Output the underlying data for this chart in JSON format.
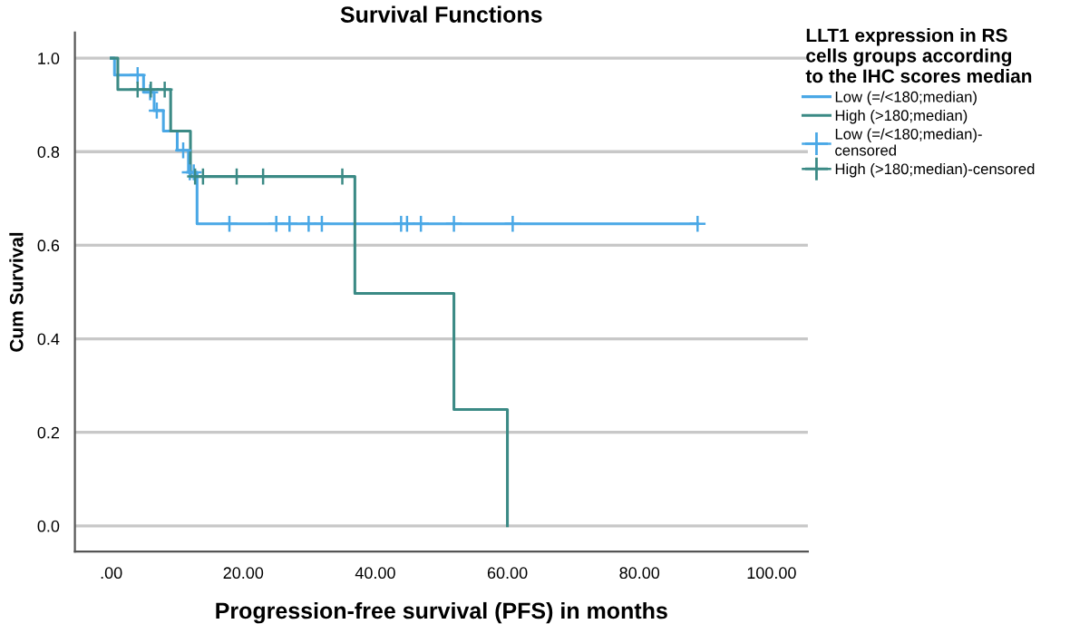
{
  "chart_data": {
    "type": "step",
    "title": "Survival Functions",
    "xlabel": "Progression-free survival (PFS) in months",
    "ylabel": "Cum Survival",
    "legend_title": "LLT1 expression in RS\ncells groups according\nto the IHC scores median",
    "series": [
      {
        "name": "Low (=/<180;median)",
        "color": "#4aa8e6",
        "x": [
          0,
          0.5,
          4.9,
          6.5,
          7.9,
          10,
          11.7,
          13,
          88.8
        ],
        "values": [
          1.0,
          0.964,
          0.927,
          0.888,
          0.844,
          0.803,
          0.756,
          0.646,
          0.646
        ]
      },
      {
        "name": "High (>180;median)",
        "color": "#3b8a85",
        "x": [
          0,
          1,
          9,
          12,
          36.9,
          51.9,
          60,
          60
        ],
        "values": [
          1.0,
          0.933,
          0.844,
          0.747,
          0.497,
          0.249,
          0.0,
          0.0
        ]
      },
      {
        "name": "Low (=/<180;median)-\ncensored",
        "type": "scatter",
        "marker": "cross",
        "color": "#4aa8e6",
        "x": [
          4,
          5.9,
          6.9,
          10.9,
          11.9,
          12.5,
          17.9,
          25,
          27,
          29.9,
          31.9,
          43.9,
          44.8,
          46.9,
          51.9,
          60.8,
          88.8
        ],
        "values": [
          0.964,
          0.927,
          0.888,
          0.803,
          0.756,
          0.756,
          0.646,
          0.646,
          0.646,
          0.646,
          0.646,
          0.646,
          0.646,
          0.646,
          0.646,
          0.646,
          0.646
        ]
      },
      {
        "name": "High (>180;median)-censored",
        "type": "scatter",
        "marker": "cross",
        "color": "#3b8a85",
        "x": [
          4,
          6,
          8.1,
          12.7,
          13.9,
          19,
          23,
          35
        ],
        "values": [
          0.933,
          0.933,
          0.933,
          0.747,
          0.747,
          0.747,
          0.747,
          0.747
        ]
      }
    ],
    "xlim": [
      -5.5,
      105.5
    ],
    "ylim": [
      -0.055,
      1.055
    ],
    "xticks": [
      {
        "value": 0,
        "label": ".00"
      },
      {
        "value": 20,
        "label": "20.00"
      },
      {
        "value": 40,
        "label": "40.00"
      },
      {
        "value": 60,
        "label": "60.00"
      },
      {
        "value": 80,
        "label": "80.00"
      },
      {
        "value": 100,
        "label": "100.00"
      }
    ],
    "yticks": [
      {
        "value": 0,
        "label": "0.0"
      },
      {
        "value": 0.2,
        "label": "0.2"
      },
      {
        "value": 0.4,
        "label": "0.4"
      },
      {
        "value": 0.6,
        "label": "0.6"
      },
      {
        "value": 0.8,
        "label": "0.8"
      },
      {
        "value": 1.0,
        "label": "1.0"
      }
    ],
    "grid": "y",
    "legend": "right"
  }
}
